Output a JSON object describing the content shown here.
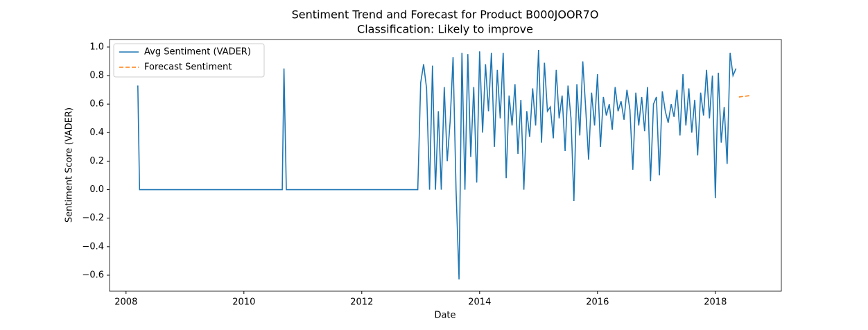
{
  "chart_data": {
    "type": "line",
    "title": "Sentiment Trend and Forecast for Product B000JOOR7O",
    "subtitle": "Classification: Likely to improve",
    "x_label": "Date",
    "y_label": "Sentiment Score (VADER)",
    "xlim": [
      2007.72,
      2019.12
    ],
    "ylim": [
      -0.712,
      1.053
    ],
    "xticks": [
      2008,
      2010,
      2012,
      2014,
      2016,
      2018
    ],
    "yticks": [
      {
        "value": -0.6,
        "label": "−0.6"
      },
      {
        "value": -0.4,
        "label": "−0.4"
      },
      {
        "value": -0.2,
        "label": "−0.2"
      },
      {
        "value": 0,
        "label": "0.0"
      },
      0.2,
      0.4,
      0.6,
      0.8,
      {
        "value": 1,
        "label": "1.0"
      }
    ],
    "grid": false,
    "legend": "upper-left",
    "series": [
      {
        "name": "Avg Sentiment (VADER)",
        "color": "#1f77b4",
        "dash": false,
        "x": [
          2008.2,
          2008.23,
          2010.65,
          2010.68,
          2010.72,
          2012.95,
          2013.0,
          2013.05,
          2013.1,
          2013.15,
          2013.2,
          2013.25,
          2013.3,
          2013.35,
          2013.4,
          2013.45,
          2013.5,
          2013.55,
          2013.6,
          2013.65,
          2013.7,
          2013.75,
          2013.8,
          2013.85,
          2013.9,
          2013.95,
          2014.0,
          2014.05,
          2014.1,
          2014.15,
          2014.2,
          2014.25,
          2014.3,
          2014.35,
          2014.4,
          2014.45,
          2014.5,
          2014.55,
          2014.6,
          2014.65,
          2014.7,
          2014.75,
          2014.8,
          2014.85,
          2014.9,
          2014.95,
          2015.0,
          2015.05,
          2015.1,
          2015.15,
          2015.2,
          2015.25,
          2015.3,
          2015.35,
          2015.4,
          2015.45,
          2015.5,
          2015.55,
          2015.6,
          2015.65,
          2015.7,
          2015.75,
          2015.8,
          2015.85,
          2015.9,
          2015.95,
          2016.0,
          2016.05,
          2016.1,
          2016.15,
          2016.2,
          2016.25,
          2016.3,
          2016.35,
          2016.4,
          2016.45,
          2016.5,
          2016.55,
          2016.6,
          2016.65,
          2016.7,
          2016.75,
          2016.8,
          2016.85,
          2016.9,
          2016.95,
          2017.0,
          2017.05,
          2017.1,
          2017.15,
          2017.2,
          2017.25,
          2017.3,
          2017.35,
          2017.4,
          2017.45,
          2017.5,
          2017.55,
          2017.6,
          2017.65,
          2017.7,
          2017.75,
          2017.8,
          2017.85,
          2017.9,
          2017.95,
          2018.0,
          2018.05,
          2018.1,
          2018.15,
          2018.2,
          2018.25,
          2018.3,
          2018.35
        ],
        "values": [
          0.73,
          0,
          0,
          0.85,
          0,
          0,
          0.75,
          0.88,
          0.71,
          0,
          0.87,
          0,
          0.55,
          0,
          0.72,
          0.2,
          0.48,
          0.93,
          0,
          -0.63,
          0.96,
          0,
          0.95,
          0.23,
          0.72,
          0.05,
          0.97,
          0.4,
          0.88,
          0.55,
          0.96,
          0.3,
          0.84,
          0.5,
          0.96,
          0.08,
          0.66,
          0.45,
          0.74,
          0.25,
          0.63,
          0,
          0.55,
          0.37,
          0.71,
          0.45,
          0.98,
          0.33,
          0.89,
          0.55,
          0.58,
          0.36,
          0.84,
          0.5,
          0.66,
          0.27,
          0.73,
          0.5,
          -0.08,
          0.74,
          0.38,
          0.9,
          0.57,
          0.21,
          0.68,
          0.45,
          0.81,
          0.3,
          0.65,
          0.52,
          0.6,
          0.42,
          0.72,
          0.55,
          0.62,
          0.49,
          0.7,
          0.56,
          0.14,
          0.68,
          0.45,
          0.65,
          0.41,
          0.72,
          0.06,
          0.6,
          0.65,
          0.1,
          0.69,
          0.55,
          0.47,
          0.6,
          0.51,
          0.7,
          0.38,
          0.81,
          0.45,
          0.71,
          0.4,
          0.63,
          0.24,
          0.68,
          0.52,
          0.84,
          0.5,
          0.8,
          -0.06,
          0.82,
          0.33,
          0.58,
          0.18,
          0.96,
          0.8,
          0.85
        ]
      },
      {
        "name": "Forecast Sentiment",
        "color": "#ff7f0e",
        "dash": true,
        "x": [
          2018.4,
          2018.5,
          2018.6
        ],
        "values": [
          0.65,
          0.655,
          0.66
        ]
      }
    ]
  }
}
